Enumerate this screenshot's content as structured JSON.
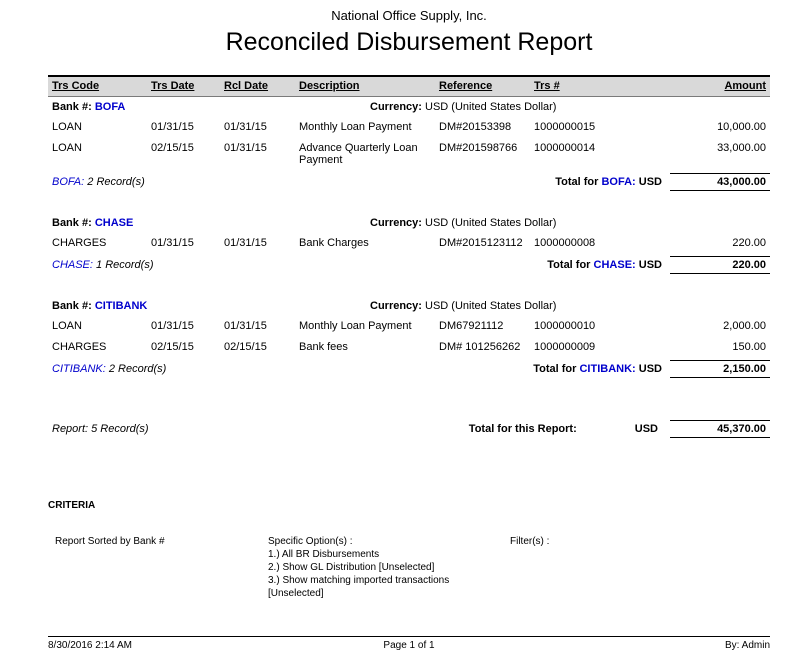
{
  "colors": {
    "bank_accent": "#0000cc",
    "header_band": "#d9d9d9"
  },
  "header": {
    "company": "National Office Supply, Inc.",
    "title": "Reconciled Disbursement Report"
  },
  "table": {
    "columns": [
      "Trs Code",
      "Trs Date",
      "Rcl Date",
      "Description",
      "Reference",
      "Trs #",
      "Amount"
    ]
  },
  "groups": [
    {
      "bank_label": "Bank #:",
      "bank_code": "BOFA",
      "currency_label": "Currency:",
      "currency_value": "USD (United States Dollar)",
      "rows": [
        {
          "trs_code": "LOAN",
          "trs_date": "01/31/15",
          "rcl_date": "01/31/15",
          "description": "Monthly Loan Payment",
          "reference": "DM#20153398",
          "trs_num": "1000000015",
          "amount": "10,000.00"
        },
        {
          "trs_code": "LOAN",
          "trs_date": "02/15/15",
          "rcl_date": "01/31/15",
          "description": "Advance Quarterly Loan Payment",
          "reference": "DM#201598766",
          "trs_num": "1000000014",
          "amount": "33,000.00"
        }
      ],
      "footer_code": "BOFA:",
      "record_count": "2 Record(s)",
      "total_label": "Total for",
      "total_code": "BOFA:",
      "total_currency": "USD",
      "total_amount": "43,000.00"
    },
    {
      "bank_label": "Bank #:",
      "bank_code": "CHASE",
      "currency_label": "Currency:",
      "currency_value": "USD (United States Dollar)",
      "rows": [
        {
          "trs_code": "CHARGES",
          "trs_date": "01/31/15",
          "rcl_date": "01/31/15",
          "description": "Bank Charges",
          "reference": "DM#2015123112",
          "trs_num": "1000000008",
          "amount": "220.00"
        }
      ],
      "footer_code": "CHASE:",
      "record_count": "1 Record(s)",
      "total_label": "Total for",
      "total_code": "CHASE:",
      "total_currency": "USD",
      "total_amount": "220.00"
    },
    {
      "bank_label": "Bank #:",
      "bank_code": "CITIBANK",
      "currency_label": "Currency:",
      "currency_value": "USD (United States Dollar)",
      "rows": [
        {
          "trs_code": "LOAN",
          "trs_date": "01/31/15",
          "rcl_date": "01/31/15",
          "description": "Monthly Loan Payment",
          "reference": "DM67921112",
          "trs_num": "1000000010",
          "amount": "2,000.00"
        },
        {
          "trs_code": "CHARGES",
          "trs_date": "02/15/15",
          "rcl_date": "02/15/15",
          "description": "Bank fees",
          "reference": "DM# 101256262",
          "trs_num": "1000000009",
          "amount": "150.00"
        }
      ],
      "footer_code": "CITIBANK:",
      "record_count": "2 Record(s)",
      "total_label": "Total for",
      "total_code": "CITIBANK:",
      "total_currency": "USD",
      "total_amount": "2,150.00"
    }
  ],
  "report_total": {
    "records": "Report: 5 Record(s)",
    "label": "Total for this Report:",
    "currency": "USD",
    "amount": "45,370.00"
  },
  "criteria": {
    "heading": "CRITERIA",
    "sorted_by": "Report Sorted by Bank #",
    "specific_options_label": "Specific Option(s) :",
    "options": [
      "1.) All BR Disbursements",
      "2.) Show GL Distribution [Unselected]",
      "3.) Show matching imported transactions [Unselected]"
    ],
    "filters_label": "Filter(s) :"
  },
  "footer": {
    "datetime": "8/30/2016 2:14 AM",
    "page": "Page 1 of 1",
    "by": "By: Admin"
  }
}
